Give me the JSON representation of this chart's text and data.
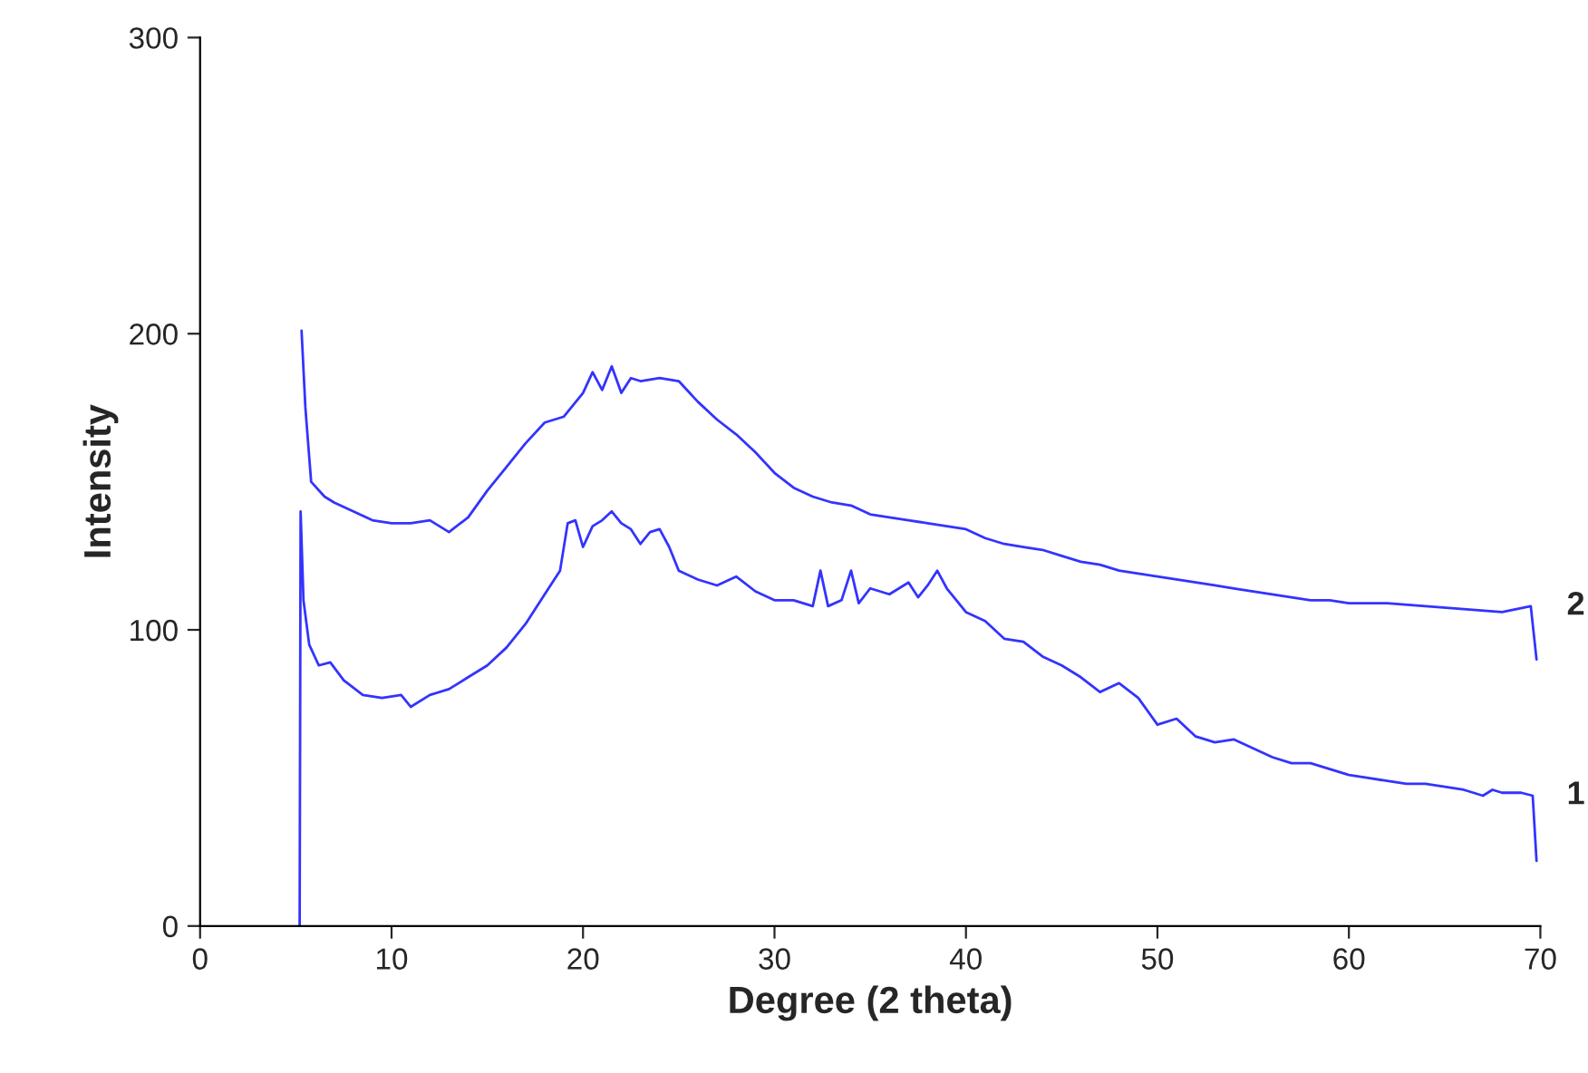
{
  "chart_data": {
    "type": "line",
    "xlabel": "Degree (2 theta)",
    "ylabel": "Intensity",
    "xlim": [
      0,
      70
    ],
    "xticks": [
      0,
      10,
      20,
      30,
      40,
      50,
      60,
      70
    ],
    "ylim": [
      0,
      300
    ],
    "yticks": [
      0,
      100,
      200,
      300
    ],
    "grid": false,
    "legend": false,
    "series": [
      {
        "name": "1",
        "color": "#3333ff",
        "x": [
          5.2,
          5.25,
          5.4,
          5.7,
          6.2,
          6.8,
          7.5,
          8.5,
          9.5,
          10.5,
          11,
          12,
          13,
          14,
          15,
          16,
          17,
          18,
          18.8,
          19.2,
          19.6,
          20,
          20.5,
          21,
          21.5,
          22,
          22.5,
          23,
          23.5,
          24,
          24.5,
          25,
          26,
          27,
          28,
          29,
          30,
          31,
          32,
          32.4,
          32.8,
          33.5,
          34,
          34.4,
          35,
          36,
          37,
          37.5,
          38,
          38.5,
          39,
          40,
          41,
          42,
          43,
          44,
          45,
          46,
          47,
          48,
          49,
          50,
          51,
          52,
          53,
          54,
          55,
          56,
          57,
          58,
          59,
          60,
          61,
          62,
          63,
          64,
          65,
          66,
          67,
          67.5,
          68,
          69,
          69.6,
          69.8
        ],
        "values": [
          0,
          140,
          110,
          95,
          88,
          89,
          83,
          78,
          77,
          78,
          74,
          78,
          80,
          84,
          88,
          94,
          102,
          112,
          120,
          136,
          137,
          128,
          135,
          137,
          140,
          136,
          134,
          129,
          133,
          134,
          128,
          120,
          117,
          115,
          118,
          113,
          110,
          110,
          108,
          120,
          108,
          110,
          120,
          109,
          114,
          112,
          116,
          111,
          115,
          120,
          114,
          106,
          103,
          97,
          96,
          91,
          88,
          84,
          79,
          82,
          77,
          68,
          70,
          64,
          62,
          63,
          60,
          57,
          55,
          55,
          53,
          51,
          50,
          49,
          48,
          48,
          47,
          46,
          44,
          46,
          45,
          45,
          44,
          22
        ]
      },
      {
        "name": "2",
        "color": "#3333ff",
        "x": [
          5.3,
          5.5,
          5.8,
          6.5,
          7,
          8,
          9,
          10,
          11,
          12,
          13,
          14,
          15,
          16,
          17,
          18,
          19,
          19.5,
          20,
          20.5,
          21,
          21.5,
          22,
          22.5,
          23,
          24,
          25,
          26,
          27,
          28,
          29,
          30,
          31,
          32,
          33,
          34,
          35,
          36,
          37,
          38,
          39,
          40,
          41,
          42,
          43,
          44,
          45,
          46,
          47,
          48,
          49,
          50,
          51,
          52,
          53,
          54,
          55,
          56,
          57,
          58,
          59,
          60,
          62,
          64,
          66,
          68,
          69.5,
          69.8
        ],
        "values": [
          201,
          175,
          150,
          145,
          143,
          140,
          137,
          136,
          136,
          137,
          133,
          138,
          147,
          155,
          163,
          170,
          172,
          176,
          180,
          187,
          181,
          189,
          180,
          185,
          184,
          185,
          184,
          177,
          171,
          166,
          160,
          153,
          148,
          145,
          143,
          142,
          139,
          138,
          137,
          136,
          135,
          134,
          131,
          129,
          128,
          127,
          125,
          123,
          122,
          120,
          119,
          118,
          117,
          116,
          115,
          114,
          113,
          112,
          111,
          110,
          110,
          109,
          109,
          108,
          107,
          106,
          108,
          90
        ]
      }
    ]
  }
}
